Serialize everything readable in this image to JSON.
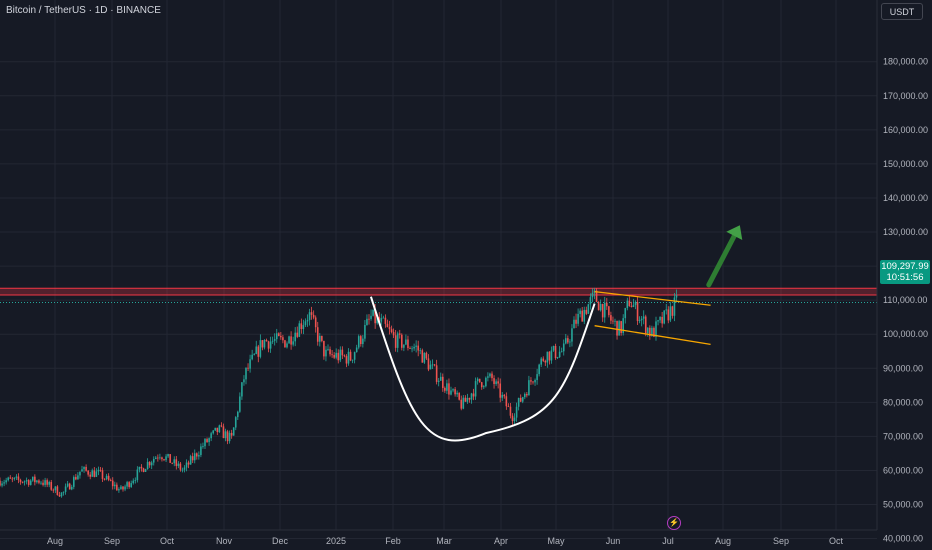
{
  "header": {
    "symbol_title": "Bitcoin / TetherUS · 1D · BINANCE"
  },
  "toolbar": {
    "currency_label": "USDT"
  },
  "price_tag": {
    "price": "109,297.99",
    "countdown": "10:51:56"
  },
  "icons": {
    "lightning": "lightning-icon"
  },
  "colors": {
    "background": "#161a25",
    "up": "#26a69a",
    "down": "#ef5350",
    "resistance": "#f23645",
    "channel": "#f7a600",
    "cup": "#ffffff",
    "arrow": "#2e7d32",
    "price_tag": "#089981"
  },
  "chart_data": {
    "type": "candlestick",
    "x_ticks": [
      "Aug",
      "Sep",
      "Oct",
      "Nov",
      "Dec",
      "2025",
      "Feb",
      "Mar",
      "Apr",
      "May",
      "Jun",
      "Jul",
      "Aug",
      "Sep",
      "Oct"
    ],
    "y_ticks": [
      "40,000.00",
      "50,000.00",
      "60,000.00",
      "70,000.00",
      "80,000.00",
      "90,000.00",
      "100,000.00",
      "110,000.00",
      "120,000.00",
      "130,000.00",
      "140,000.00",
      "150,000.00",
      "160,000.00",
      "170,000.00",
      "180,000.00"
    ],
    "ylim": [
      37000,
      184000
    ],
    "last_price": 109297.99,
    "path_points": [
      [
        "Jul 24",
        57000
      ],
      [
        "Aug 5",
        53000
      ],
      [
        "Aug 15",
        60000
      ],
      [
        "Aug 25",
        59000
      ],
      [
        "Sep 6",
        54000
      ],
      [
        "Sep 20",
        62000
      ],
      [
        "Sep 27",
        65000
      ],
      [
        "Oct 10",
        60000
      ],
      [
        "Oct 20",
        67000
      ],
      [
        "Oct 29",
        72000
      ],
      [
        "Nov 5",
        69000
      ],
      [
        "Nov 12",
        88000
      ],
      [
        "Nov 22",
        98000
      ],
      [
        "Dec 5",
        98000
      ],
      [
        "Dec 17",
        106000
      ],
      [
        "Dec 26",
        94000
      ],
      [
        "Jan 9",
        93000
      ],
      [
        "Jan 20",
        105000
      ],
      [
        "Jan 26",
        103000
      ],
      [
        "Feb 3",
        98000
      ],
      [
        "Feb 14",
        96000
      ],
      [
        "Feb 25",
        88000
      ],
      [
        "Mar 11",
        79000
      ],
      [
        "Mar 20",
        86000
      ],
      [
        "Mar 27",
        87000
      ],
      [
        "Apr 7",
        76000
      ],
      [
        "Apr 15",
        84000
      ],
      [
        "Apr 25",
        94000
      ],
      [
        "May 5",
        95000
      ],
      [
        "May 12",
        104000
      ],
      [
        "May 22",
        111000
      ],
      [
        "May 31",
        104000
      ],
      [
        "Jun 5",
        101000
      ],
      [
        "Jun 10",
        110000
      ],
      [
        "Jun 22",
        100000
      ],
      [
        "Jul 1",
        106000
      ],
      [
        "Jul 6",
        109298
      ]
    ],
    "annotations": {
      "resistance_zone": [
        111500,
        113500
      ],
      "cup": {
        "start": [
          "Jan 20",
          111000
        ],
        "bottom": [
          "Mar 24",
          71000
        ],
        "end": [
          "May 22",
          109000
        ]
      },
      "channel_upper": [
        [
          "May 22",
          112500
        ],
        [
          "Jul 25",
          108500
        ]
      ],
      "channel_lower": [
        [
          "May 22",
          102500
        ],
        [
          "Jul 25",
          97000
        ]
      ],
      "arrow": {
        "from": [
          "Jul 24",
          114500
        ],
        "to": [
          "Aug 10",
          132000
        ]
      }
    }
  }
}
